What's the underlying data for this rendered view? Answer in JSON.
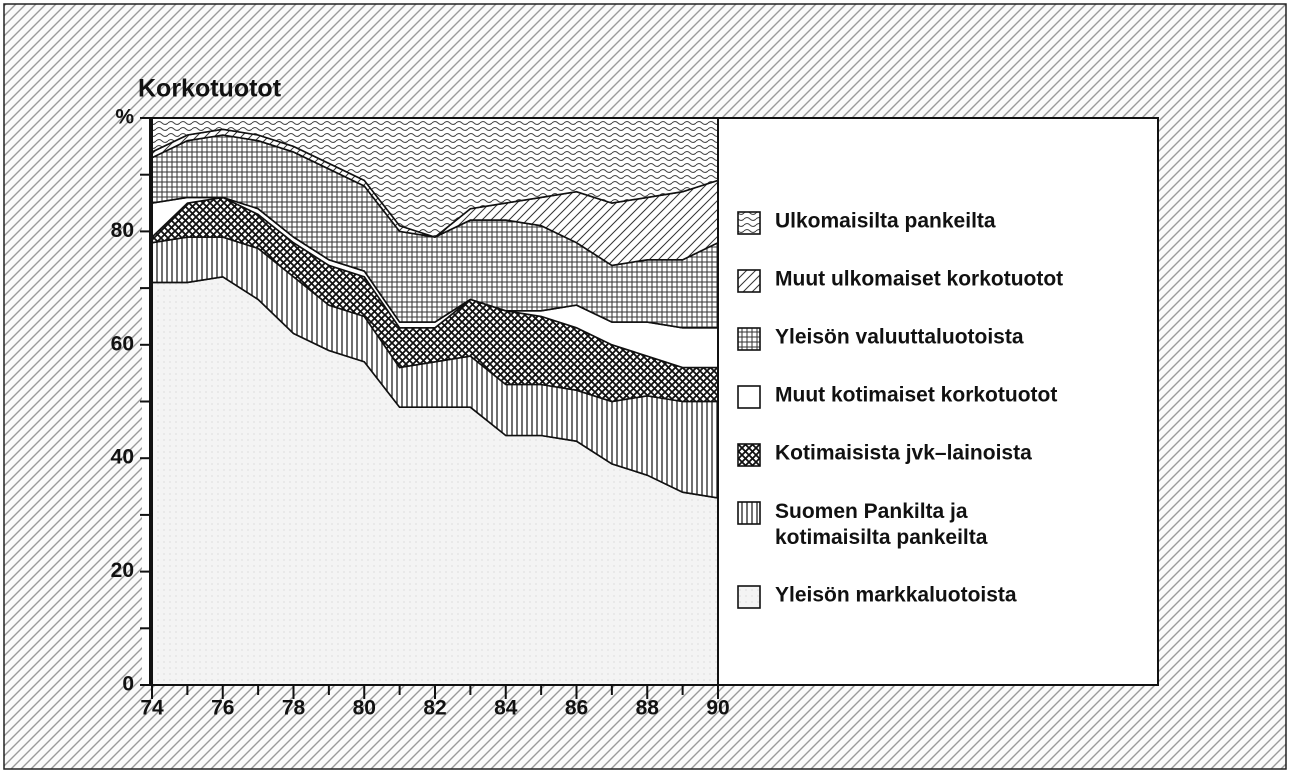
{
  "chart_data": {
    "type": "stacked_area",
    "title": "Korkotuotot",
    "x": [
      74,
      75,
      76,
      77,
      78,
      79,
      80,
      81,
      82,
      83,
      84,
      85,
      86,
      87,
      88,
      89,
      90
    ],
    "xlim": [
      74,
      90
    ],
    "xticks": [
      74,
      76,
      78,
      80,
      82,
      84,
      86,
      88,
      90
    ],
    "xminorticks": [
      75,
      77,
      79,
      81,
      83,
      85,
      87,
      89
    ],
    "ylim": [
      0,
      100
    ],
    "yticks": [
      0,
      20,
      40,
      60,
      80,
      {
        "value": 100,
        "label": "%"
      }
    ],
    "yminorticks": [
      10,
      30,
      50,
      70,
      90
    ],
    "series": [
      {
        "name": "Yleisön markkaluotoista",
        "pattern": "dots",
        "color": "#f4f4f4",
        "values": [
          71,
          71,
          72,
          68,
          62,
          59,
          57,
          49,
          49,
          49,
          44,
          44,
          43,
          39,
          37,
          34,
          33
        ]
      },
      {
        "name": "Suomen Pankilta ja\nkotimaisilta pankeilta",
        "pattern": "vertical",
        "color": "#ffffff",
        "values": [
          7,
          8,
          7,
          9,
          10,
          8,
          8,
          7,
          8,
          9,
          9,
          9,
          9,
          11,
          14,
          16,
          17
        ]
      },
      {
        "name": "Kotimaisista jvk–lainoista",
        "pattern": "crosshatch",
        "color": "#ffffff",
        "values": [
          1,
          6,
          7,
          6,
          6,
          7,
          7,
          7,
          6,
          10,
          13,
          12,
          11,
          10,
          7,
          6,
          6
        ]
      },
      {
        "name": "Muut kotimaiset korkotuotot",
        "pattern": "none",
        "color": "#ffffff",
        "values": [
          6,
          1,
          0,
          1,
          1,
          1,
          1,
          1,
          1,
          0,
          0,
          1,
          4,
          4,
          6,
          7,
          7
        ]
      },
      {
        "name": "Yleisön valuuttaluotoista",
        "pattern": "grid",
        "color": "#ffffff",
        "values": [
          8,
          10,
          11,
          12,
          15,
          16,
          15,
          16,
          15,
          14,
          16,
          15,
          11,
          10,
          11,
          12,
          15
        ]
      },
      {
        "name": "Muut ulkomaiset korkotuotot",
        "pattern": "diagonal",
        "color": "#ffffff",
        "values": [
          1,
          1,
          1,
          1,
          1,
          1,
          1,
          1,
          0,
          2,
          3,
          5,
          9,
          11,
          11,
          12,
          11
        ]
      },
      {
        "name": "Ulkomaisilta pankeilta",
        "pattern": "wavy",
        "color": "#ffffff",
        "values": [
          6,
          3,
          2,
          3,
          5,
          8,
          11,
          19,
          21,
          16,
          15,
          14,
          13,
          15,
          14,
          13,
          11
        ]
      }
    ]
  }
}
